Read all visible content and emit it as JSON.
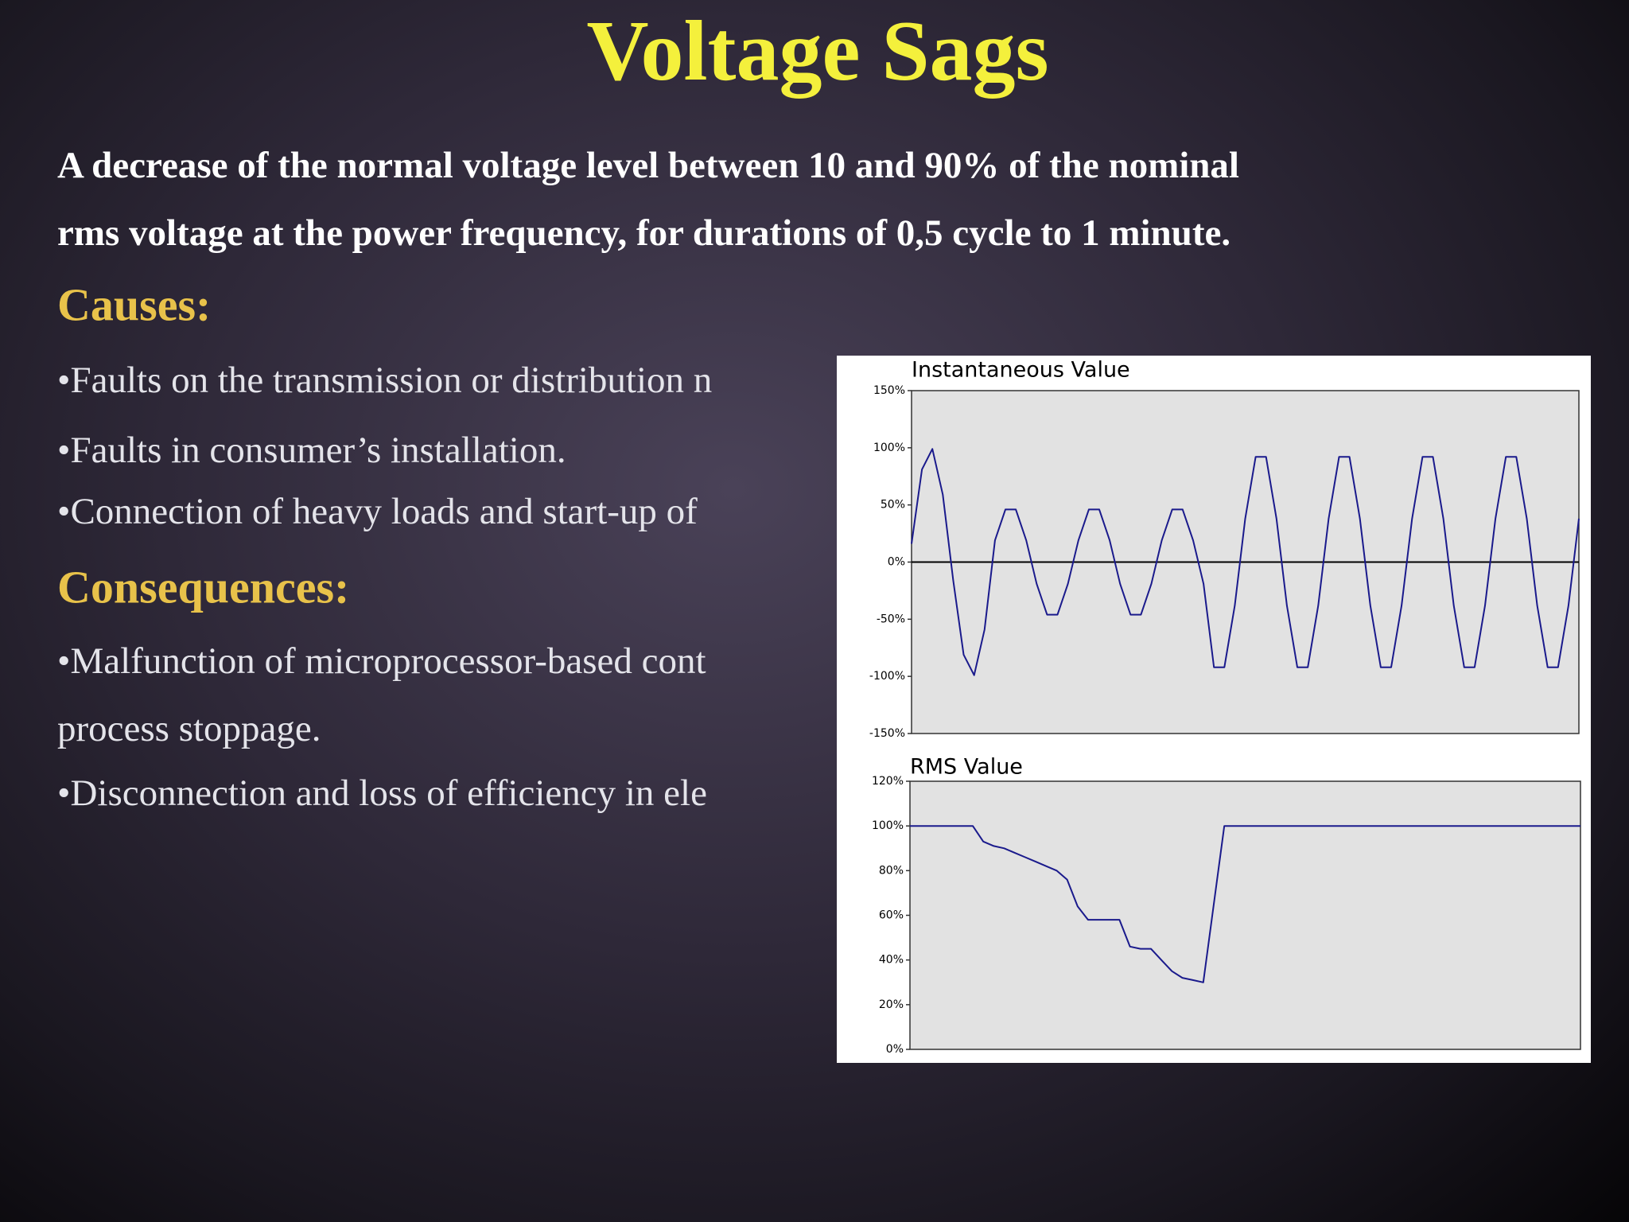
{
  "slide": {
    "title": "Voltage Sags",
    "definition": [
      "A decrease of the normal voltage level between 10 and 90% of the nominal",
      "rms voltage at the power frequency, for durations of 0,5 cycle to 1 minute."
    ],
    "causes": {
      "heading": "Causes:",
      "items": [
        "•Faults on the transmission or distribution  n",
        "•Faults in consumer’s installation.",
        "•Connection of heavy loads and start-up of"
      ]
    },
    "consequences": {
      "heading": "Consequences:",
      "items": [
        "•Malfunction of microprocessor-based  cont",
        "process  stoppage.",
        "•Disconnection and loss of efficiency in  ele"
      ]
    }
  },
  "chart_data": [
    {
      "type": "line",
      "title": "Instantaneous Value",
      "ylim": [
        -150,
        150
      ],
      "yticks": [
        {
          "value": -150,
          "label": "-150%"
        },
        {
          "value": -100,
          "label": "-100%"
        },
        {
          "value": -50,
          "label": "-50%"
        },
        {
          "value": 0,
          "label": "0%"
        },
        {
          "value": 50,
          "label": "50%"
        },
        {
          "value": 100,
          "label": "100%"
        },
        {
          "value": 150,
          "label": "150%"
        }
      ],
      "series": [
        {
          "color": "#1a1a8c",
          "values": [
            16,
            81,
            99,
            59,
            -16,
            -81,
            -99,
            -59,
            19,
            46,
            46,
            19,
            -19,
            -46,
            -46,
            -19,
            19,
            46,
            46,
            19,
            -19,
            -46,
            -46,
            -19,
            19,
            46,
            46,
            19,
            -19,
            -92,
            -92,
            -38,
            38,
            92,
            92,
            38,
            -38,
            -92,
            -92,
            -38,
            38,
            92,
            92,
            38,
            -38,
            -92,
            -92,
            -38,
            38,
            92,
            92,
            38,
            -38,
            -92,
            -92,
            -38,
            38,
            92,
            92,
            38,
            -38,
            -92,
            -92,
            -38,
            38
          ]
        }
      ]
    },
    {
      "type": "line",
      "title": "RMS Value",
      "ylim": [
        0,
        120
      ],
      "yticks": [
        {
          "value": 0,
          "label": "0%"
        },
        {
          "value": 20,
          "label": "20%"
        },
        {
          "value": 40,
          "label": "40%"
        },
        {
          "value": 60,
          "label": "60%"
        },
        {
          "value": 80,
          "label": "80%"
        },
        {
          "value": 100,
          "label": "100%"
        },
        {
          "value": 120,
          "label": "120%"
        }
      ],
      "series": [
        {
          "color": "#1a1a8c",
          "values": [
            100,
            100,
            100,
            100,
            100,
            100,
            100,
            93,
            91,
            90,
            88,
            86,
            84,
            82,
            80,
            76,
            64,
            58,
            58,
            58,
            58,
            46,
            45,
            45,
            40,
            35,
            32,
            31,
            30,
            65,
            100,
            100,
            100,
            100,
            100,
            100,
            100,
            100,
            100,
            100,
            100,
            100,
            100,
            100,
            100,
            100,
            100,
            100,
            100,
            100,
            100,
            100,
            100,
            100,
            100,
            100,
            100,
            100,
            100,
            100,
            100,
            100,
            100,
            100,
            100
          ]
        }
      ]
    }
  ]
}
